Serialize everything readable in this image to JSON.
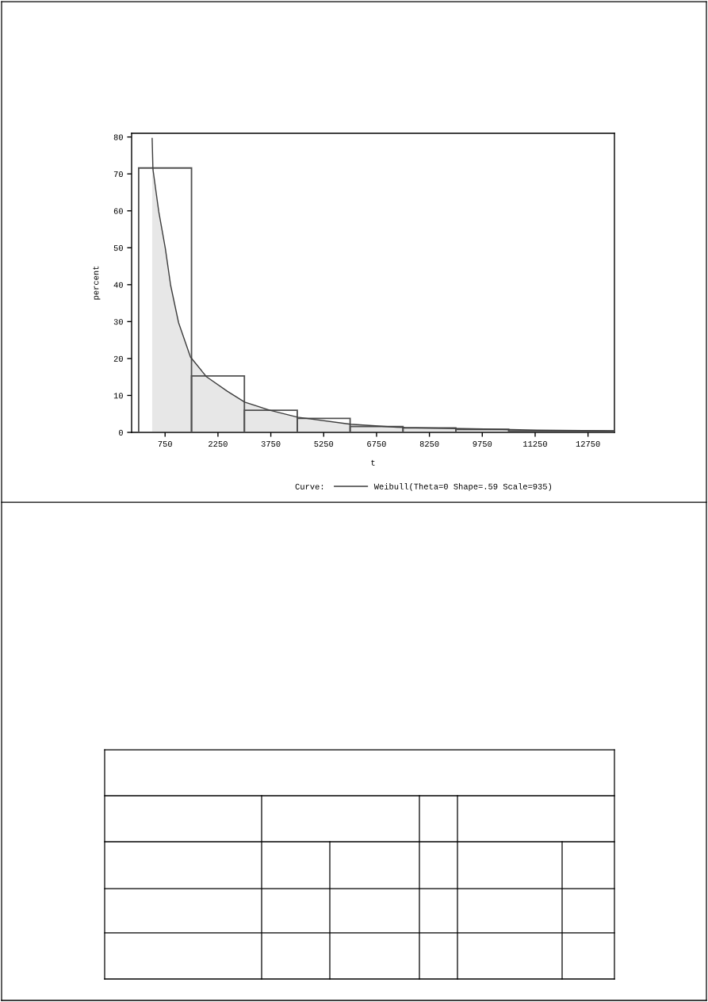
{
  "chart_data": {
    "type": "histogram",
    "xlabel": "t",
    "ylabel": "percent",
    "legend_title": "Curve:",
    "legend": "bottom",
    "grid": false,
    "xlim": [
      -200,
      13500
    ],
    "xticks": [
      750,
      2250,
      3750,
      5250,
      6750,
      8250,
      9750,
      11250,
      12750
    ],
    "ylim": [
      0,
      81
    ],
    "yticks": [
      0,
      10,
      20,
      30,
      40,
      50,
      60,
      70,
      80
    ],
    "series": [
      {
        "type": "histogram",
        "color": "#505050",
        "bins": [
          0,
          1500,
          3000,
          4500,
          6000,
          7500,
          9000,
          10500,
          12000,
          13500
        ],
        "values": [
          71.6,
          15.3,
          6.0,
          3.8,
          1.6,
          1.2,
          0.8,
          0.4,
          0.4
        ]
      },
      {
        "type": "area",
        "name": "Weibull(Theta=0 Shape=.59 Scale=935)",
        "color": "#3c3c3c",
        "x": [
          383,
          405,
          570,
          757,
          908,
          1133,
          1470,
          1921,
          2523,
          3009,
          3723,
          4511,
          6014,
          7327,
          7552,
          9804,
          11306,
          13500
        ],
        "values": [
          79.6,
          71.3,
          59.8,
          49.8,
          39.8,
          29.7,
          20.4,
          15.1,
          11.1,
          8.2,
          6.0,
          4.1,
          2.2,
          1.4,
          1.3,
          0.9,
          0.6,
          0.4
        ]
      }
    ]
  }
}
